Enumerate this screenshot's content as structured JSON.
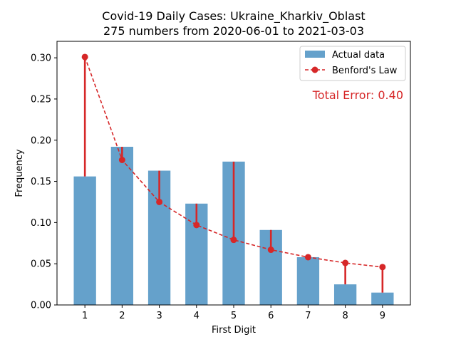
{
  "chart_data": {
    "type": "bar",
    "title": "Covid-19 Daily Cases: Ukraine_Kharkiv_Oblast",
    "subtitle": "275 numbers from 2020-06-01 to 2021-03-03",
    "xlabel": "First Digit",
    "ylabel": "Frequency",
    "categories": [
      "1",
      "2",
      "3",
      "4",
      "5",
      "6",
      "7",
      "8",
      "9"
    ],
    "series": [
      {
        "name": "Actual data",
        "type": "bar",
        "color": "#4a90c2",
        "values": [
          0.156,
          0.192,
          0.163,
          0.123,
          0.174,
          0.091,
          0.058,
          0.025,
          0.015
        ]
      },
      {
        "name": "Benford's Law",
        "type": "line",
        "style": "dashed",
        "color": "#d62728",
        "values": [
          0.301,
          0.176,
          0.125,
          0.097,
          0.079,
          0.067,
          0.058,
          0.051,
          0.046
        ]
      }
    ],
    "ylim": [
      0,
      0.32
    ],
    "yticks": [
      "0.00",
      "0.05",
      "0.10",
      "0.15",
      "0.20",
      "0.25",
      "0.30"
    ],
    "annotation": "Total Error: 0.40",
    "legend_position": "top-right",
    "grid": false
  }
}
